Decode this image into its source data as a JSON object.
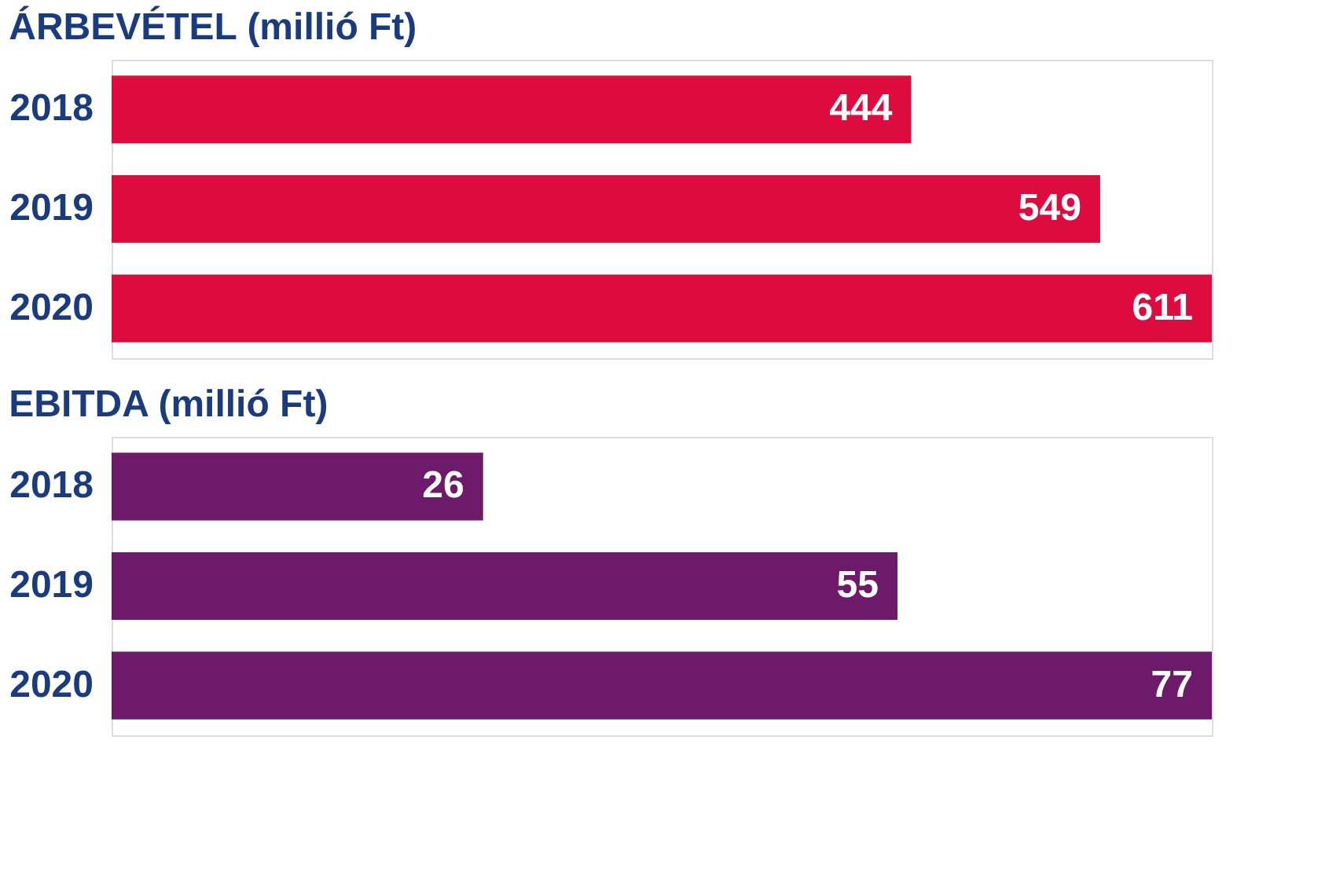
{
  "chart_data": [
    {
      "type": "bar",
      "orientation": "horizontal",
      "title": "ÁRBEVÉTEL (millió Ft)",
      "categories": [
        "2018",
        "2019",
        "2020"
      ],
      "values": [
        444,
        549,
        611
      ],
      "color": "#dc0d3e",
      "data_labels": true
    },
    {
      "type": "bar",
      "orientation": "horizontal",
      "title": "EBITDA (millió Ft)",
      "categories": [
        "2018",
        "2019",
        "2020"
      ],
      "values": [
        26,
        55,
        77
      ],
      "color": "#6d1a6b",
      "data_labels": true
    }
  ]
}
